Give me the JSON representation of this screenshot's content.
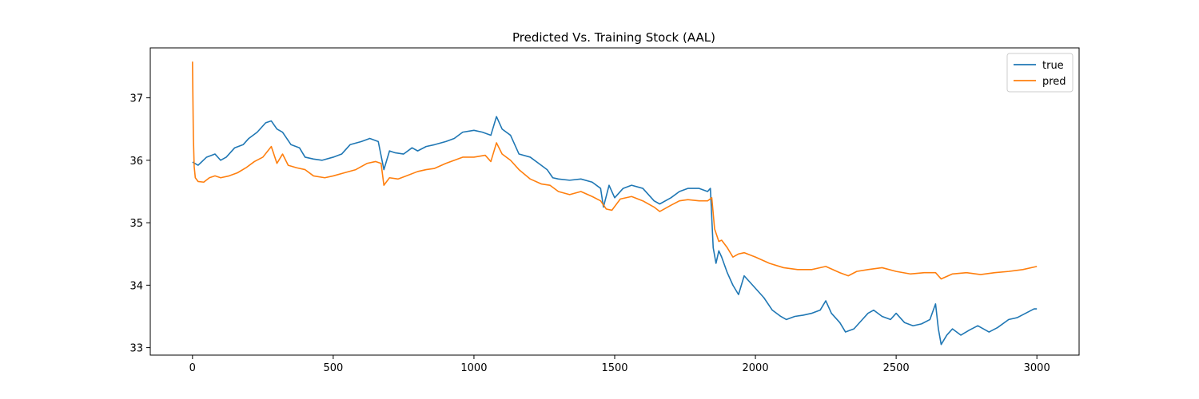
{
  "chart_data": {
    "type": "line",
    "title": "Predicted Vs. Training Stock (AAL)",
    "xlabel": "",
    "ylabel": "",
    "xlim": [
      -150,
      3150
    ],
    "ylim": [
      32.88,
      37.8
    ],
    "xticks": [
      0,
      500,
      1000,
      1500,
      2000,
      2500,
      3000
    ],
    "yticks": [
      33,
      34,
      35,
      36,
      37
    ],
    "grid": false,
    "legend_position": "top-right",
    "series": [
      {
        "name": "true",
        "color": "#1f77b4",
        "x": [
          0,
          20,
          50,
          80,
          100,
          120,
          150,
          180,
          200,
          230,
          260,
          280,
          300,
          320,
          350,
          380,
          400,
          430,
          460,
          500,
          530,
          560,
          600,
          630,
          660,
          680,
          700,
          720,
          750,
          780,
          800,
          830,
          860,
          900,
          930,
          960,
          1000,
          1030,
          1060,
          1080,
          1100,
          1130,
          1160,
          1200,
          1230,
          1260,
          1280,
          1300,
          1340,
          1380,
          1420,
          1450,
          1460,
          1480,
          1500,
          1530,
          1560,
          1600,
          1640,
          1660,
          1700,
          1730,
          1760,
          1800,
          1830,
          1840,
          1850,
          1860,
          1870,
          1880,
          1900,
          1920,
          1940,
          1960,
          2000,
          2030,
          2060,
          2090,
          2110,
          2140,
          2170,
          2200,
          2230,
          2250,
          2270,
          2300,
          2320,
          2350,
          2380,
          2400,
          2420,
          2450,
          2480,
          2500,
          2530,
          2560,
          2590,
          2620,
          2640,
          2650,
          2660,
          2680,
          2700,
          2730,
          2760,
          2790,
          2830,
          2860,
          2900,
          2930,
          2960,
          2990,
          3000
        ],
        "y": [
          35.97,
          35.92,
          36.05,
          36.1,
          36.0,
          36.05,
          36.2,
          36.25,
          36.35,
          36.45,
          36.6,
          36.63,
          36.5,
          36.45,
          36.25,
          36.2,
          36.05,
          36.02,
          36.0,
          36.05,
          36.1,
          36.25,
          36.3,
          36.35,
          36.3,
          35.85,
          36.15,
          36.12,
          36.1,
          36.2,
          36.15,
          36.22,
          36.25,
          36.3,
          36.35,
          36.45,
          36.48,
          36.45,
          36.4,
          36.7,
          36.5,
          36.4,
          36.1,
          36.05,
          35.95,
          35.85,
          35.72,
          35.7,
          35.68,
          35.7,
          35.65,
          35.55,
          35.25,
          35.6,
          35.4,
          35.55,
          35.6,
          35.55,
          35.35,
          35.3,
          35.4,
          35.5,
          35.55,
          35.55,
          35.5,
          35.55,
          34.6,
          34.35,
          34.55,
          34.45,
          34.2,
          34.0,
          33.85,
          34.15,
          33.95,
          33.8,
          33.6,
          33.5,
          33.45,
          33.5,
          33.52,
          33.55,
          33.6,
          33.75,
          33.55,
          33.4,
          33.25,
          33.3,
          33.45,
          33.55,
          33.6,
          33.5,
          33.45,
          33.55,
          33.4,
          33.35,
          33.38,
          33.45,
          33.7,
          33.3,
          33.05,
          33.2,
          33.3,
          33.2,
          33.28,
          33.35,
          33.25,
          33.32,
          33.45,
          33.48,
          33.55,
          33.62,
          33.62
        ]
      },
      {
        "name": "pred",
        "color": "#ff7f0e",
        "x": [
          0,
          3,
          6,
          10,
          20,
          40,
          60,
          80,
          100,
          130,
          160,
          190,
          220,
          250,
          280,
          300,
          320,
          340,
          370,
          400,
          430,
          470,
          500,
          540,
          580,
          620,
          650,
          670,
          680,
          700,
          730,
          760,
          800,
          830,
          860,
          900,
          930,
          960,
          1000,
          1040,
          1060,
          1080,
          1100,
          1130,
          1160,
          1200,
          1240,
          1270,
          1300,
          1340,
          1380,
          1420,
          1450,
          1470,
          1490,
          1520,
          1560,
          1600,
          1640,
          1660,
          1700,
          1730,
          1760,
          1800,
          1830,
          1845,
          1855,
          1870,
          1880,
          1900,
          1920,
          1940,
          1960,
          2000,
          2050,
          2100,
          2150,
          2200,
          2250,
          2300,
          2330,
          2360,
          2400,
          2450,
          2500,
          2550,
          2600,
          2640,
          2660,
          2700,
          2750,
          2800,
          2850,
          2900,
          2950,
          3000
        ],
        "y": [
          37.58,
          36.4,
          35.9,
          35.72,
          35.66,
          35.65,
          35.72,
          35.75,
          35.72,
          35.75,
          35.8,
          35.88,
          35.98,
          36.05,
          36.22,
          35.95,
          36.1,
          35.92,
          35.88,
          35.85,
          35.75,
          35.72,
          35.75,
          35.8,
          35.85,
          35.95,
          35.98,
          35.95,
          35.6,
          35.72,
          35.7,
          35.75,
          35.82,
          35.85,
          35.87,
          35.95,
          36.0,
          36.05,
          36.05,
          36.08,
          35.98,
          36.28,
          36.1,
          36.0,
          35.85,
          35.7,
          35.62,
          35.6,
          35.5,
          35.45,
          35.5,
          35.42,
          35.35,
          35.22,
          35.2,
          35.38,
          35.42,
          35.35,
          35.25,
          35.18,
          35.28,
          35.35,
          35.37,
          35.35,
          35.35,
          35.4,
          34.9,
          34.7,
          34.72,
          34.6,
          34.45,
          34.5,
          34.52,
          34.45,
          34.35,
          34.28,
          34.25,
          34.25,
          34.3,
          34.2,
          34.15,
          34.22,
          34.25,
          34.28,
          34.22,
          34.18,
          34.2,
          34.2,
          34.1,
          34.18,
          34.2,
          34.17,
          34.2,
          34.22,
          34.25,
          34.3
        ]
      }
    ]
  }
}
